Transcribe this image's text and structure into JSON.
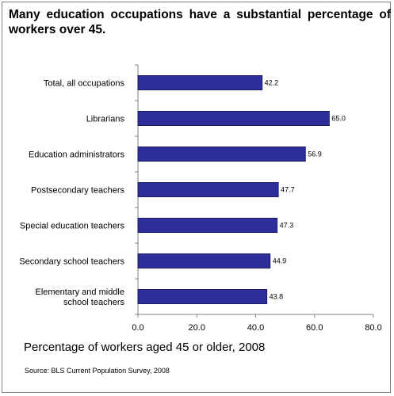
{
  "title": "Many education occupations have a substantial percentage of workers over 45.",
  "source": "Source: BLS Current Population Survey, 2008",
  "colors": {
    "bar": "#2e2e99",
    "bar_stroke": "#1b1b66",
    "axis": "#808080"
  },
  "chart_data": {
    "type": "bar",
    "orientation": "horizontal",
    "title": "Many education occupations have a substantial percentage of workers over 45.",
    "xlabel": "Percentage of workers aged 45 or older, 2008",
    "ylabel": "",
    "xlim": [
      0,
      80
    ],
    "xticks": [
      "0.0",
      "20.0",
      "40.0",
      "60.0",
      "80.0"
    ],
    "grid": false,
    "categories": [
      [
        "Total, all occupations"
      ],
      [
        "Librarians"
      ],
      [
        "Education administrators"
      ],
      [
        "Postsecondary teachers"
      ],
      [
        "Special education teachers"
      ],
      [
        "Secondary school teachers"
      ],
      [
        "Elementary and middle",
        "school teachers"
      ]
    ],
    "values": [
      42.2,
      65.0,
      56.9,
      47.7,
      47.3,
      44.9,
      43.8
    ],
    "value_labels": [
      "42.2",
      "65.0",
      "56.9",
      "47.7",
      "47.3",
      "44.9",
      "43.8"
    ]
  }
}
